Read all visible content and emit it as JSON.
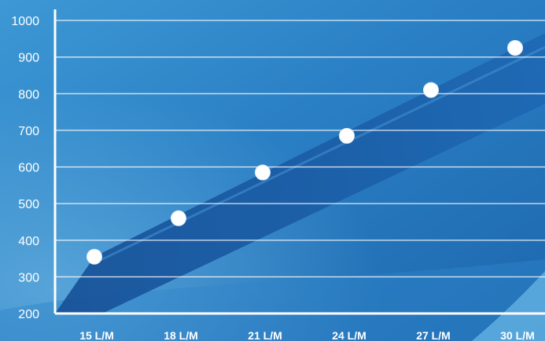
{
  "colors": {
    "background_light": "#4aa6dc",
    "background_dark": "#1f6fb5",
    "area_fill": "#1b5fae",
    "grid": "#ffffff",
    "axis": "#ffffff",
    "marker": "#ffffff",
    "text": "#ffffff"
  },
  "chart_data": {
    "type": "scatter",
    "title": "",
    "xlabel": "",
    "ylabel": "",
    "categories": [
      "15 L/M",
      "18 L/M",
      "21 L/M",
      "24 L/M",
      "27 L/M",
      "30 L/M"
    ],
    "values": [
      355,
      460,
      585,
      685,
      810,
      925
    ],
    "ylim": [
      200,
      1000
    ],
    "yticks": [
      200,
      300,
      400,
      500,
      600,
      700,
      800,
      900,
      1000
    ],
    "ytick_labels": [
      "200",
      "300",
      "400",
      "500",
      "600",
      "700",
      "800",
      "900",
      "1000"
    ],
    "grid": true,
    "legend": "none",
    "decorative_trend_area": true
  }
}
